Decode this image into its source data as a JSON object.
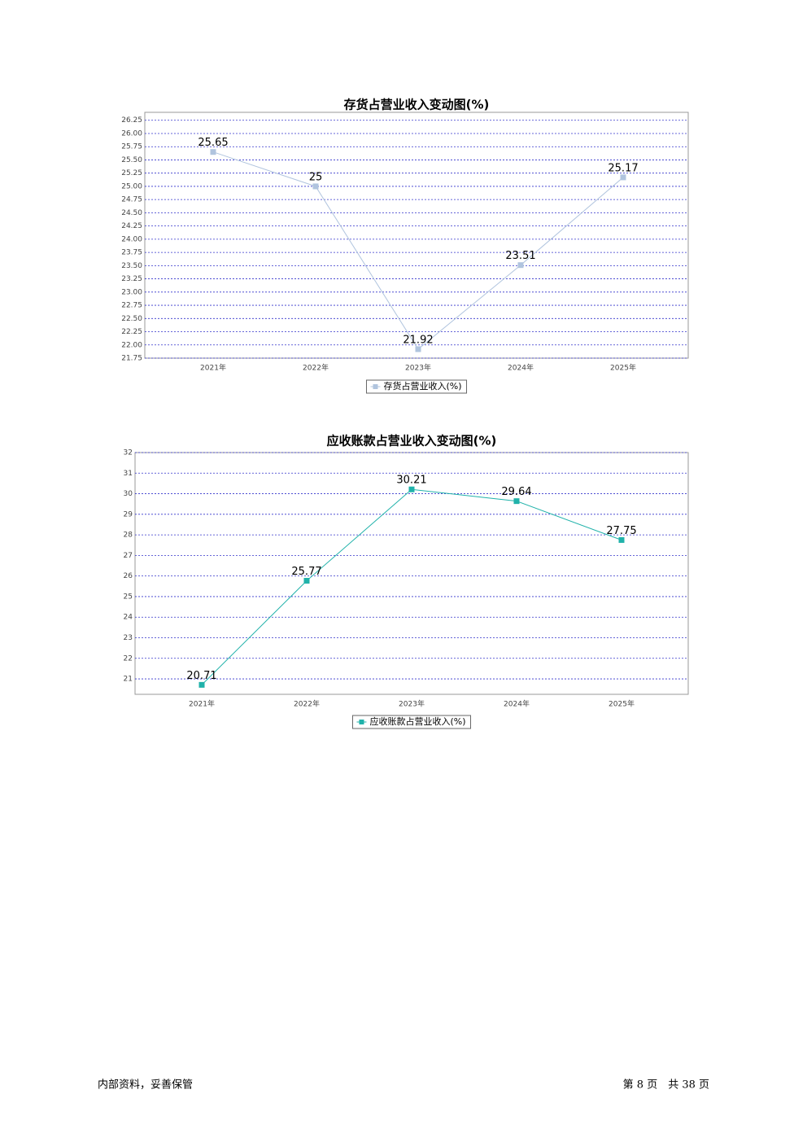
{
  "chart_data": [
    {
      "type": "line",
      "title": "存货占营业收入变动图(%)",
      "categories": [
        "2021年",
        "2022年",
        "2023年",
        "2024年",
        "2025年"
      ],
      "series": [
        {
          "name": "存货占营业收入(%)",
          "color": "#b0c4de",
          "values": [
            25.65,
            25,
            21.92,
            23.51,
            25.17
          ]
        }
      ],
      "ylim": [
        21.75,
        26.4
      ],
      "yticks": [
        21.75,
        {
          "value": 22,
          "label": "22.00"
        },
        22.25,
        {
          "value": 22.5,
          "label": "22.50"
        },
        22.75,
        {
          "value": 23,
          "label": "23.00"
        },
        23.25,
        {
          "value": 23.5,
          "label": "23.50"
        },
        23.75,
        {
          "value": 24,
          "label": "24.00"
        },
        24.25,
        {
          "value": 24.5,
          "label": "24.50"
        },
        24.75,
        {
          "value": 25,
          "label": "25.00"
        },
        25.25,
        {
          "value": 25.5,
          "label": "25.50"
        },
        25.75,
        {
          "value": 26,
          "label": "26.00"
        },
        26.25
      ],
      "grid": true
    },
    {
      "type": "line",
      "title": "应收账款占营业收入变动图(%)",
      "categories": [
        "2021年",
        "2022年",
        "2023年",
        "2024年",
        "2025年"
      ],
      "series": [
        {
          "name": "应收账款占营业收入(%)",
          "color": "#20b2aa",
          "values": [
            20.71,
            25.77,
            30.21,
            29.64,
            27.75
          ]
        }
      ],
      "ylim": [
        20.25,
        32
      ],
      "yticks": [
        21,
        22,
        23,
        24,
        25,
        26,
        27,
        28,
        29,
        30,
        31,
        32
      ],
      "grid": true
    }
  ],
  "footer": {
    "left": "内部资料，妥善保管",
    "right": "第 8 页　共 38 页"
  }
}
